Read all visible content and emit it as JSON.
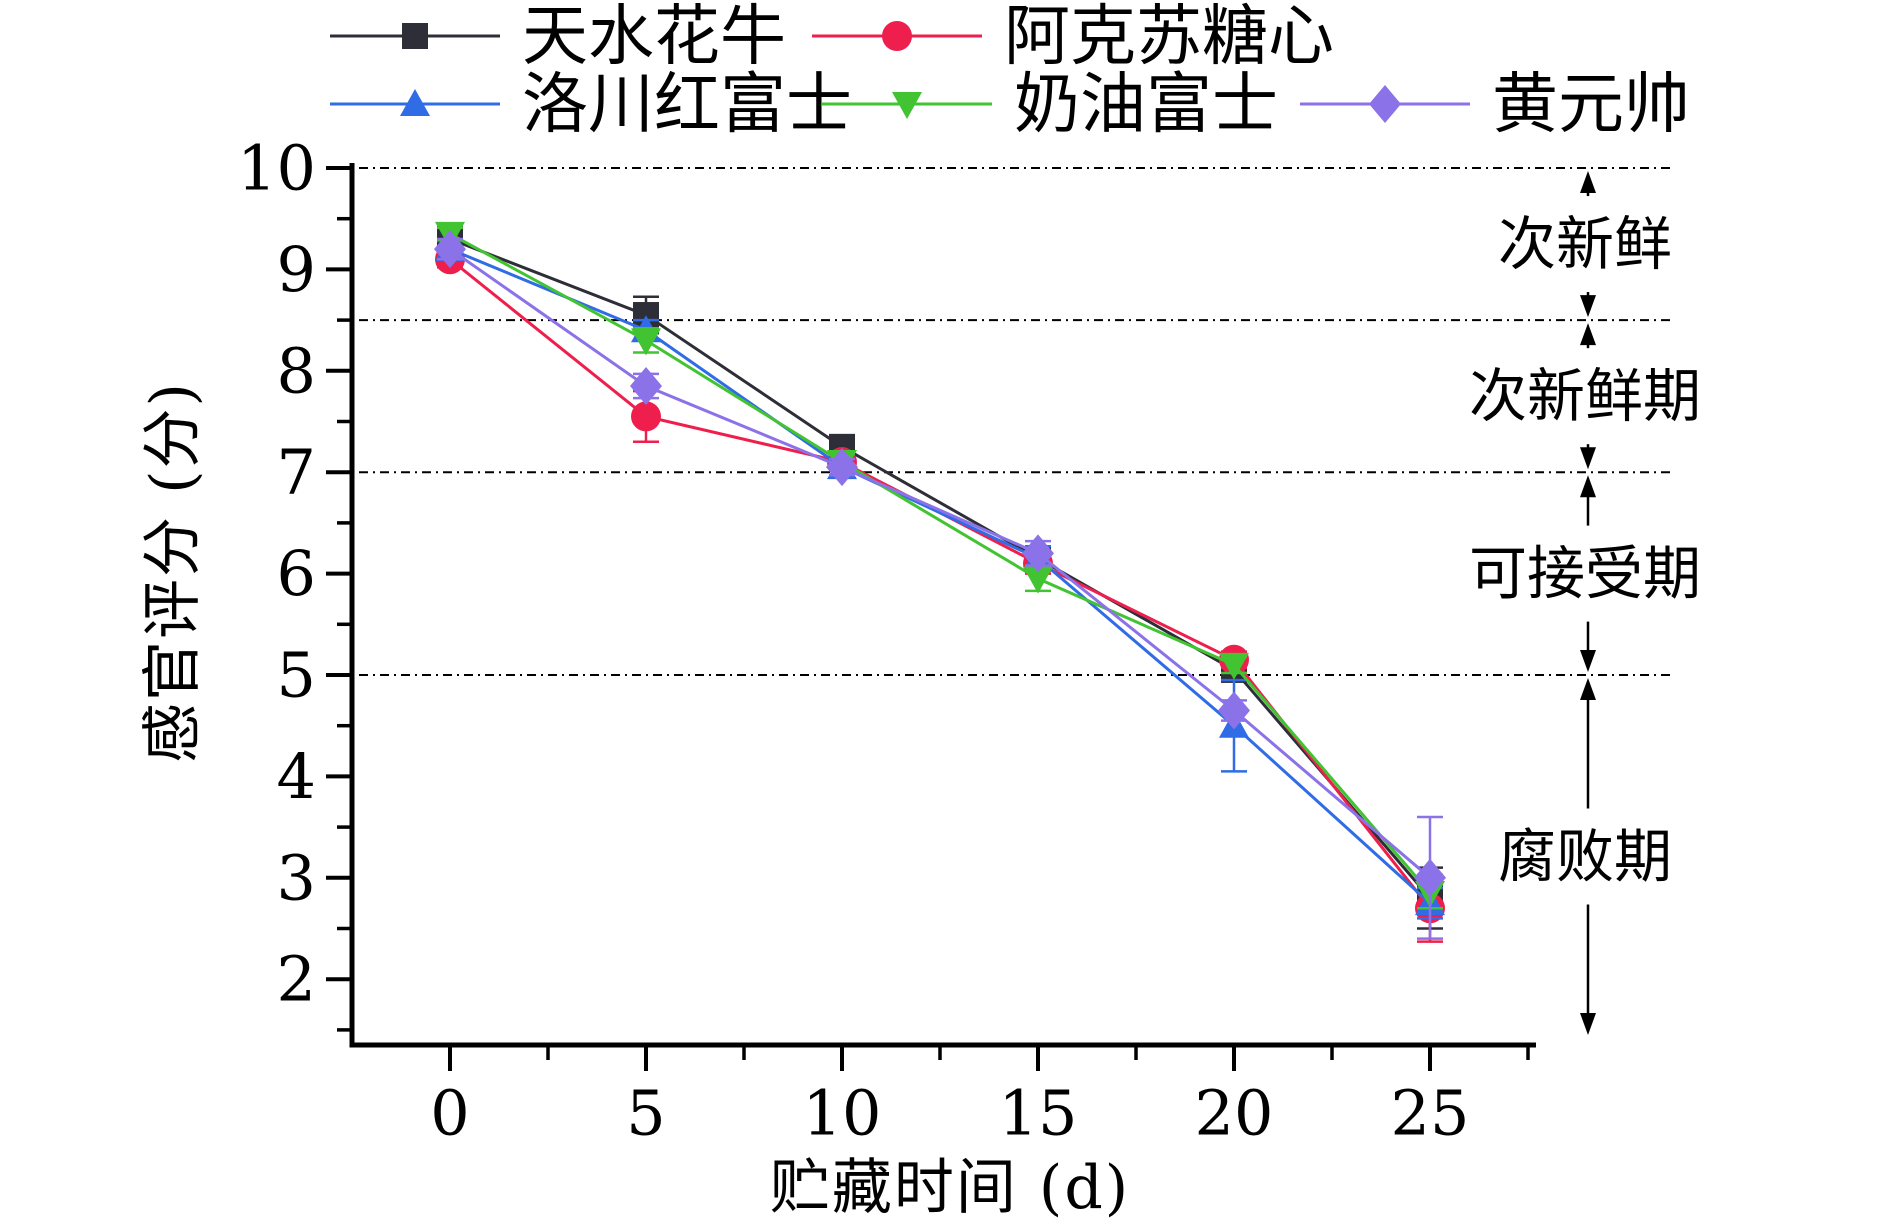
{
  "chart_data": {
    "type": "line",
    "title": "",
    "xlabel": "贮藏时间 (d)",
    "ylabel": "感官评分 (分)",
    "x": [
      0,
      5,
      10,
      15,
      20,
      25
    ],
    "x_ticks": [
      0,
      5,
      10,
      15,
      20,
      25
    ],
    "x_minor_ticks": [
      2.5,
      7.5,
      12.5,
      17.5,
      22.5,
      27.5
    ],
    "y_ticks": [
      2,
      3,
      4,
      5,
      6,
      7,
      8,
      9,
      10
    ],
    "y_minor_ticks": [
      1.5,
      2.5,
      3.5,
      4.5,
      5.5,
      6.5,
      7.5,
      8.5,
      9.5
    ],
    "xlim": [
      -2.5,
      27.5
    ],
    "ylim": [
      1.4,
      10
    ],
    "grid": "horizontal-reference-only",
    "legend_position": "top",
    "reference_lines": [
      10,
      8.5,
      7,
      5
    ],
    "regions": [
      {
        "label": "次新鲜",
        "from": 10,
        "to": 8.5
      },
      {
        "label": "次新鲜期",
        "from": 8.5,
        "to": 7
      },
      {
        "label": "可接受期",
        "from": 7,
        "to": 5
      },
      {
        "label": "腐败期",
        "from": 5,
        "to": 1.4
      }
    ],
    "series": [
      {
        "name": "天水花牛",
        "color": "#2e2e38",
        "marker": "square",
        "values": [
          9.3,
          8.55,
          7.25,
          6.15,
          5.05,
          2.8
        ],
        "errors": [
          0.1,
          0.18,
          0.1,
          0.1,
          0.08,
          0.3
        ]
      },
      {
        "name": "阿克苏糖心",
        "color": "#ef1f4d",
        "marker": "circle",
        "values": [
          9.1,
          7.55,
          7.1,
          6.1,
          5.15,
          2.7
        ],
        "errors": [
          0.08,
          0.25,
          0.08,
          0.1,
          0.08,
          0.33
        ]
      },
      {
        "name": "洛川红富士",
        "color": "#2f6ce5",
        "marker": "triangle-up",
        "values": [
          9.2,
          8.4,
          7.05,
          6.15,
          4.5,
          2.75
        ],
        "errors": [
          0.08,
          0.1,
          0.08,
          0.12,
          0.45,
          0.15
        ]
      },
      {
        "name": "奶油富士",
        "color": "#41c332",
        "marker": "triangle-down",
        "values": [
          9.35,
          8.3,
          7.1,
          5.95,
          5.1,
          2.85
        ],
        "errors": [
          0.06,
          0.12,
          0.08,
          0.12,
          0.08,
          0.15
        ]
      },
      {
        "name": "黄元帅",
        "color": "#8c72e8",
        "marker": "diamond",
        "values": [
          9.2,
          7.85,
          7.05,
          6.2,
          4.65,
          3.0
        ],
        "errors": [
          0.1,
          0.12,
          0.08,
          0.12,
          0.1,
          0.6
        ]
      }
    ]
  }
}
